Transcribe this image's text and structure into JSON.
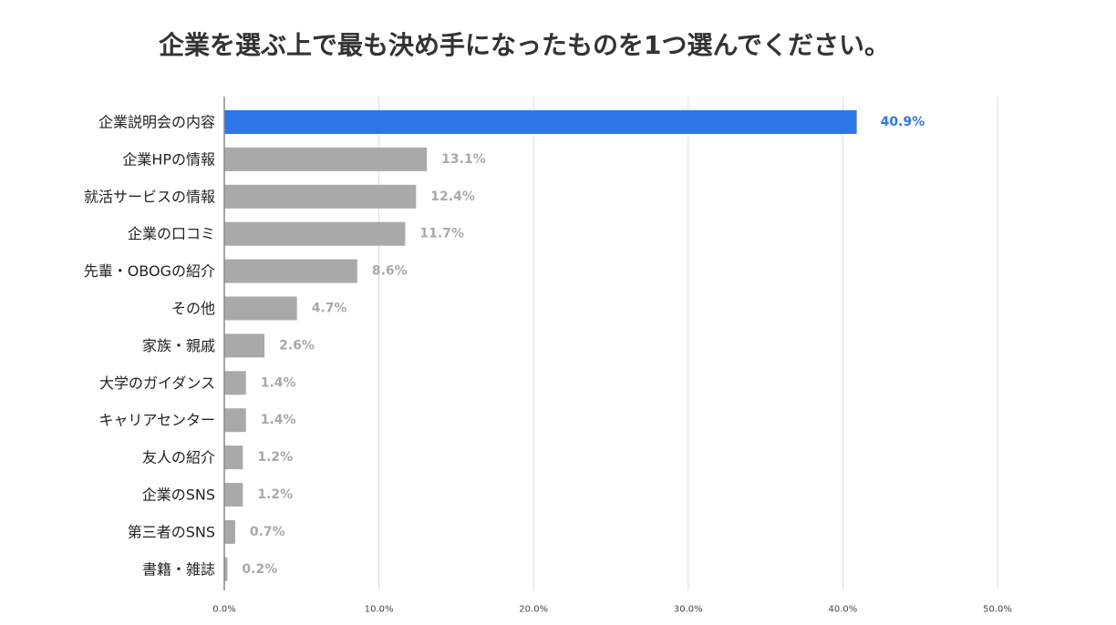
{
  "chart_data": {
    "type": "bar",
    "orientation": "horizontal",
    "title": "企業を選ぶ上で最も決め手になったものを1つ選んでください。",
    "categories": [
      "企業説明会の内容",
      "企業HPの情報",
      "就活サービスの情報",
      "企業の口コミ",
      "先輩・OBOGの紹介",
      "その他",
      "家族・親戚",
      "大学のガイダンス",
      "キャリアセンター",
      "友人の紹介",
      "企業のSNS",
      "第三者のSNS",
      "書籍・雑誌"
    ],
    "values": [
      40.9,
      13.1,
      12.4,
      11.7,
      8.6,
      4.7,
      2.6,
      1.4,
      1.4,
      1.2,
      1.2,
      0.7,
      0.2
    ],
    "value_labels": [
      "40.9%",
      "13.1%",
      "12.4%",
      "11.7%",
      "8.6%",
      "4.7%",
      "2.6%",
      "1.4%",
      "1.4%",
      "1.2%",
      "1.2%",
      "0.7%",
      "0.2%"
    ],
    "xlim": [
      0,
      50
    ],
    "x_ticks": [
      0,
      10,
      20,
      30,
      40,
      50
    ],
    "x_tick_labels": [
      "0.0%",
      "10.0%",
      "20.0%",
      "30.0%",
      "40.0%",
      "50.0%"
    ],
    "grid": true,
    "legend": "none",
    "xlabel": "",
    "ylabel": "",
    "colors": {
      "highlight_bar": "#2f76e8",
      "bar": "#a9a9a9",
      "highlight_label": "#2f76e8",
      "label": "#a9a9a9",
      "grid": "#dddddd",
      "axis": "#888888"
    },
    "highlight_index": 0
  }
}
